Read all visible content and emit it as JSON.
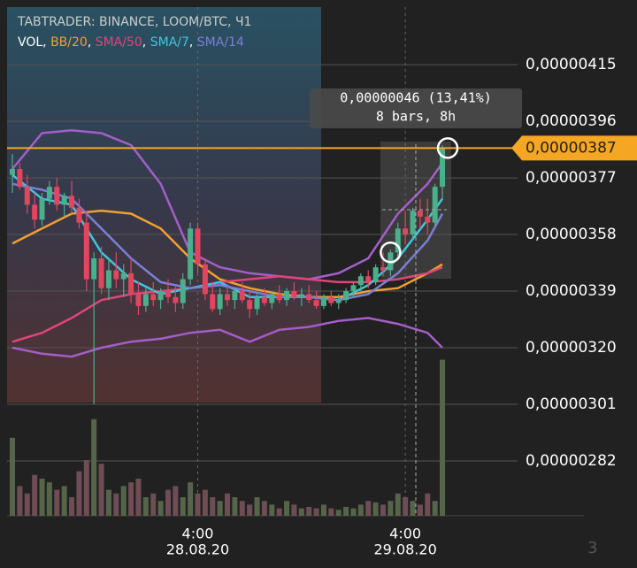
{
  "chart_data": {
    "type": "candlestick",
    "title": "TABTRADER: BINANCE, LOOM/BTC, Ч1",
    "legend": {
      "separator": ",",
      "volume_name": "VOL",
      "volume_color": "#ffffff"
    },
    "ylim": [
      2.636e-06,
      4.367e-06
    ],
    "yticks": [
      {
        "value": 4.15e-06,
        "label": "0,00000415"
      },
      {
        "value": 3.96e-06,
        "label": "0,00000396"
      },
      {
        "value": 3.77e-06,
        "label": "0,00000377"
      },
      {
        "value": 3.58e-06,
        "label": "0,00000358"
      },
      {
        "value": 3.39e-06,
        "label": "0,00000339"
      },
      {
        "value": 3.2e-06,
        "label": "0,00000320"
      },
      {
        "value": 3.01e-06,
        "label": "0,00000301"
      },
      {
        "value": 2.82e-06,
        "label": "0,00000282"
      }
    ],
    "grid": true,
    "up_color": "#4caf8c",
    "down_color": "#e0475f",
    "x_labels": [
      {
        "index": 25,
        "time": "4:00",
        "date": "28.08.20"
      },
      {
        "index": 53,
        "time": "4:00",
        "date": "29.08.20"
      }
    ],
    "open": [
      3.78e-06,
      3.8e-06,
      3.74e-06,
      3.68e-06,
      3.63e-06,
      3.7e-06,
      3.74e-06,
      3.68e-06,
      3.71e-06,
      3.67e-06,
      3.62e-06,
      3.43e-06,
      3.5e-06,
      3.4e-06,
      3.46e-06,
      3.43e-06,
      3.45e-06,
      3.38e-06,
      3.34e-06,
      3.38e-06,
      3.36e-06,
      3.39e-06,
      3.37e-06,
      3.35e-06,
      3.43e-06,
      3.6e-06,
      3.48e-06,
      3.38e-06,
      3.33e-06,
      3.38e-06,
      3.36e-06,
      3.39e-06,
      3.36e-06,
      3.33e-06,
      3.37e-06,
      3.35e-06,
      3.38e-06,
      3.36e-06,
      3.39e-06,
      3.37e-06,
      3.38e-06,
      3.36e-06,
      3.34e-06,
      3.37e-06,
      3.35e-06,
      3.36e-06,
      3.39e-06,
      3.41e-06,
      3.44e-06,
      3.42e-06,
      3.47e-06,
      3.46e-06,
      3.52e-06,
      3.6e-06,
      3.58e-06,
      3.66e-06,
      3.64e-06,
      3.62e-06,
      3.74e-06
    ],
    "high": [
      3.85e-06,
      3.82e-06,
      3.78e-06,
      3.72e-06,
      3.72e-06,
      3.76e-06,
      3.77e-06,
      3.72e-06,
      3.76e-06,
      3.7e-06,
      3.66e-06,
      3.52e-06,
      3.54e-06,
      3.5e-06,
      3.52e-06,
      3.48e-06,
      3.5e-06,
      3.42e-06,
      3.4e-06,
      3.42e-06,
      3.4e-06,
      3.43e-06,
      3.41e-06,
      3.45e-06,
      3.62e-06,
      3.62e-06,
      3.5e-06,
      3.42e-06,
      3.4e-06,
      3.41e-06,
      3.4e-06,
      3.42e-06,
      3.39e-06,
      3.38e-06,
      3.4e-06,
      3.39e-06,
      3.41e-06,
      3.4e-06,
      3.42e-06,
      3.4e-06,
      3.41e-06,
      3.39e-06,
      3.38e-06,
      3.39e-06,
      3.38e-06,
      3.4e-06,
      3.42e-06,
      3.45e-06,
      3.46e-06,
      3.48e-06,
      3.52e-06,
      3.53e-06,
      3.62e-06,
      3.66e-06,
      3.67e-06,
      3.7e-06,
      3.7e-06,
      3.75e-06,
      3.88e-06
    ],
    "low": [
      3.72e-06,
      3.73e-06,
      3.65e-06,
      3.6e-06,
      3.61e-06,
      3.68e-06,
      3.66e-06,
      3.64e-06,
      3.65e-06,
      3.6e-06,
      3.39e-06,
      3.01e-06,
      3.38e-06,
      3.36e-06,
      3.4e-06,
      3.37e-06,
      3.35e-06,
      3.31e-06,
      3.32e-06,
      3.34e-06,
      3.33e-06,
      3.35e-06,
      3.32e-06,
      3.33e-06,
      3.41e-06,
      3.45e-06,
      3.36e-06,
      3.32e-06,
      3.31e-06,
      3.34e-06,
      3.33e-06,
      3.35e-06,
      3.3e-06,
      3.31e-06,
      3.34e-06,
      3.33e-06,
      3.35e-06,
      3.34e-06,
      3.36e-06,
      3.34e-06,
      3.35e-06,
      3.33e-06,
      3.33e-06,
      3.34e-06,
      3.33e-06,
      3.35e-06,
      3.37e-06,
      3.39e-06,
      3.4e-06,
      3.41e-06,
      3.44e-06,
      3.44e-06,
      3.5e-06,
      3.55e-06,
      3.56e-06,
      3.6e-06,
      3.58e-06,
      3.61e-06,
      3.7e-06
    ],
    "close": [
      3.8e-06,
      3.74e-06,
      3.68e-06,
      3.63e-06,
      3.7e-06,
      3.74e-06,
      3.68e-06,
      3.71e-06,
      3.67e-06,
      3.62e-06,
      3.43e-06,
      3.5e-06,
      3.4e-06,
      3.46e-06,
      3.43e-06,
      3.45e-06,
      3.38e-06,
      3.34e-06,
      3.38e-06,
      3.36e-06,
      3.39e-06,
      3.37e-06,
      3.35e-06,
      3.43e-06,
      3.6e-06,
      3.48e-06,
      3.38e-06,
      3.33e-06,
      3.38e-06,
      3.36e-06,
      3.39e-06,
      3.36e-06,
      3.33e-06,
      3.37e-06,
      3.35e-06,
      3.38e-06,
      3.36e-06,
      3.39e-06,
      3.37e-06,
      3.38e-06,
      3.36e-06,
      3.34e-06,
      3.37e-06,
      3.35e-06,
      3.36e-06,
      3.39e-06,
      3.41e-06,
      3.44e-06,
      3.42e-06,
      3.47e-06,
      3.46e-06,
      3.52e-06,
      3.6e-06,
      3.58e-06,
      3.66e-06,
      3.64e-06,
      3.62e-06,
      3.74e-06,
      3.87e-06
    ],
    "volume": {
      "vlim": [
        0,
        250
      ],
      "up_color": "#56654a",
      "down_color": "#6e4d55",
      "values": [
        105,
        40,
        30,
        55,
        50,
        45,
        35,
        40,
        25,
        60,
        75,
        130,
        70,
        35,
        30,
        40,
        45,
        50,
        25,
        30,
        20,
        35,
        40,
        25,
        45,
        30,
        35,
        25,
        20,
        30,
        25,
        20,
        15,
        25,
        20,
        15,
        10,
        20,
        15,
        10,
        12,
        10,
        15,
        10,
        8,
        12,
        10,
        15,
        20,
        18,
        15,
        20,
        30,
        25,
        20,
        15,
        30,
        20,
        210
      ]
    },
    "indicators": {
      "x": [
        0,
        4,
        8,
        12,
        16,
        20,
        24,
        28,
        32,
        36,
        40,
        44,
        48,
        52,
        56,
        58
      ],
      "series": [
        {
          "name": "BB/20",
          "color": "#f0a030",
          "band_color": "#a45ec8",
          "values": [
            3.55e-06,
            3.6e-06,
            3.65e-06,
            3.66e-06,
            3.65e-06,
            3.6e-06,
            3.5e-06,
            3.43e-06,
            3.4e-06,
            3.38e-06,
            3.37e-06,
            3.37e-06,
            3.39e-06,
            3.4e-06,
            3.45e-06,
            3.48e-06
          ],
          "upper": [
            3.8e-06,
            3.92e-06,
            3.93e-06,
            3.92e-06,
            3.88e-06,
            3.75e-06,
            3.52e-06,
            3.47e-06,
            3.45e-06,
            3.44e-06,
            3.43e-06,
            3.45e-06,
            3.5e-06,
            3.65e-06,
            3.75e-06,
            3.82e-06
          ],
          "lower": [
            3.2e-06,
            3.18e-06,
            3.17e-06,
            3.2e-06,
            3.22e-06,
            3.23e-06,
            3.25e-06,
            3.26e-06,
            3.22e-06,
            3.26e-06,
            3.27e-06,
            3.29e-06,
            3.3e-06,
            3.28e-06,
            3.25e-06,
            3.2e-06
          ]
        },
        {
          "name": "SMA/50",
          "color": "#e0457a",
          "values": [
            3.22e-06,
            3.25e-06,
            3.3e-06,
            3.36e-06,
            3.38e-06,
            3.39e-06,
            3.4e-06,
            3.42e-06,
            3.43e-06,
            3.44e-06,
            3.43e-06,
            3.42e-06,
            3.42e-06,
            3.43e-06,
            3.45e-06,
            3.47e-06
          ]
        },
        {
          "name": "SMA/7",
          "color": "#3ec6e0",
          "values": [
            3.78e-06,
            3.7e-06,
            3.68e-06,
            3.52e-06,
            3.43e-06,
            3.38e-06,
            3.4e-06,
            3.42e-06,
            3.37e-06,
            3.37e-06,
            3.37e-06,
            3.36e-06,
            3.41e-06,
            3.5e-06,
            3.63e-06,
            3.7e-06
          ]
        },
        {
          "name": "SMA/14",
          "color": "#7a7fd6",
          "values": [
            3.75e-06,
            3.73e-06,
            3.7e-06,
            3.6e-06,
            3.5e-06,
            3.42e-06,
            3.4e-06,
            3.41e-06,
            3.39e-06,
            3.37e-06,
            3.37e-06,
            3.36e-06,
            3.38e-06,
            3.45e-06,
            3.56e-06,
            3.65e-06
          ]
        }
      ]
    },
    "current_price": {
      "value": 3.87e-06,
      "label": "0,00000387",
      "color": "#f5a623"
    },
    "measure": {
      "change": "0,00000046 (13,41%)",
      "span": "8 bars, 8h"
    },
    "page_indicator": "3"
  }
}
